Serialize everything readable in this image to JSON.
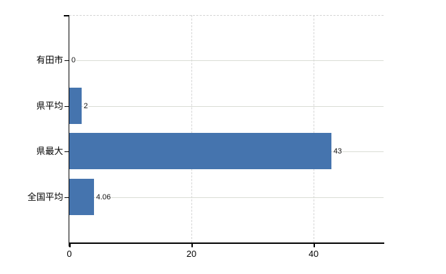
{
  "chart_data": {
    "type": "bar",
    "orientation": "horizontal",
    "title": "",
    "categories": [
      "有田市",
      "県平均",
      "県最大",
      "全国平均"
    ],
    "values": [
      0,
      2,
      43,
      4.06
    ],
    "value_labels": [
      "0",
      "2",
      "43",
      "4.06"
    ],
    "x_ticks": [
      0,
      20,
      40
    ],
    "x_tick_labels": [
      "0",
      "20",
      "40"
    ],
    "xlim": [
      0,
      51.5
    ],
    "legend": "none",
    "grid": {
      "horizontal_lines": "solid, one per category",
      "vertical_lines": "dashed at x ticks 20 and 40",
      "top_border": "dashed"
    },
    "colors": {
      "bar": "#4574ae",
      "grid_solid": "#d9dcd4",
      "grid_dashed": "#d4d4d4",
      "axis": "#000000",
      "text": "#000000",
      "background": "#ffffff"
    }
  }
}
